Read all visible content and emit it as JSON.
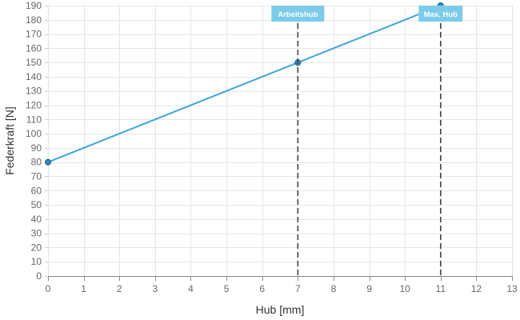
{
  "chart_data": {
    "type": "line",
    "title": "",
    "xlabel": "Hub [mm]",
    "ylabel": "Federkraft [N]",
    "xlim": [
      0,
      13
    ],
    "ylim": [
      0,
      190
    ],
    "x_ticks": [
      0,
      1,
      2,
      3,
      4,
      5,
      6,
      7,
      8,
      9,
      10,
      11,
      12,
      13
    ],
    "y_ticks": [
      0,
      10,
      20,
      30,
      40,
      50,
      60,
      70,
      80,
      90,
      100,
      110,
      120,
      130,
      140,
      150,
      160,
      170,
      180,
      190
    ],
    "grid": true,
    "series": [
      {
        "x": [
          0,
          7,
          11
        ],
        "y": [
          80,
          150,
          190
        ]
      }
    ],
    "reference_lines": [
      {
        "x": 7,
        "label": "Arbeitshub"
      },
      {
        "x": 11,
        "label": "Max. Hub"
      }
    ],
    "colors": {
      "line": "#3aa6d8",
      "marker_fill": "#2b8cc4",
      "marker_stroke": "#1f5f86",
      "ref_line": "#444444",
      "ref_box": "#7ccbea",
      "axis": "#888888"
    }
  }
}
